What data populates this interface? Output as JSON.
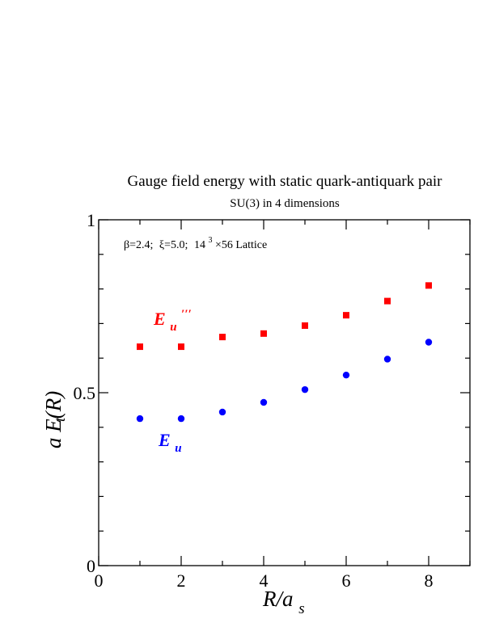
{
  "chart_data": {
    "type": "scatter",
    "title": "Gauge field energy with static quark-antiquark pair",
    "subtitle": "SU(3) in 4 dimensions",
    "annotation": {
      "beta": "β=2.4;",
      "xi": "ξ=5.0;",
      "lattice_base": "14",
      "lattice_exp": "3",
      "lattice_rest": "×56 Lattice"
    },
    "xlabel": {
      "main": "R/a",
      "sub": "s"
    },
    "ylabel": {
      "main": "a E(R)",
      "sub": "t"
    },
    "xlim": [
      0,
      9
    ],
    "ylim": [
      0,
      1
    ],
    "x_ticks": [
      0,
      2,
      4,
      6,
      8
    ],
    "x_tick_labels": [
      "0",
      "2",
      "4",
      "6",
      "8"
    ],
    "y_ticks": [
      0,
      0.5,
      1
    ],
    "y_tick_labels": [
      "0",
      "0.5",
      "1"
    ],
    "grid": false,
    "series": [
      {
        "name": "E_u'''",
        "label_main": "E",
        "label_sub": "u",
        "label_sup": "′′′",
        "color": "#ff0000",
        "marker": "square",
        "x": [
          1,
          2,
          3,
          4,
          5,
          6,
          7,
          8
        ],
        "values": [
          0.633,
          0.633,
          0.661,
          0.671,
          0.694,
          0.724,
          0.765,
          0.81
        ]
      },
      {
        "name": "E_u",
        "label_main": "E",
        "label_sub": "u",
        "label_sup": "",
        "color": "#0000ff",
        "marker": "circle",
        "x": [
          1,
          2,
          3,
          4,
          5,
          6,
          7,
          8
        ],
        "values": [
          0.425,
          0.425,
          0.444,
          0.472,
          0.509,
          0.551,
          0.597,
          0.646
        ]
      }
    ]
  }
}
